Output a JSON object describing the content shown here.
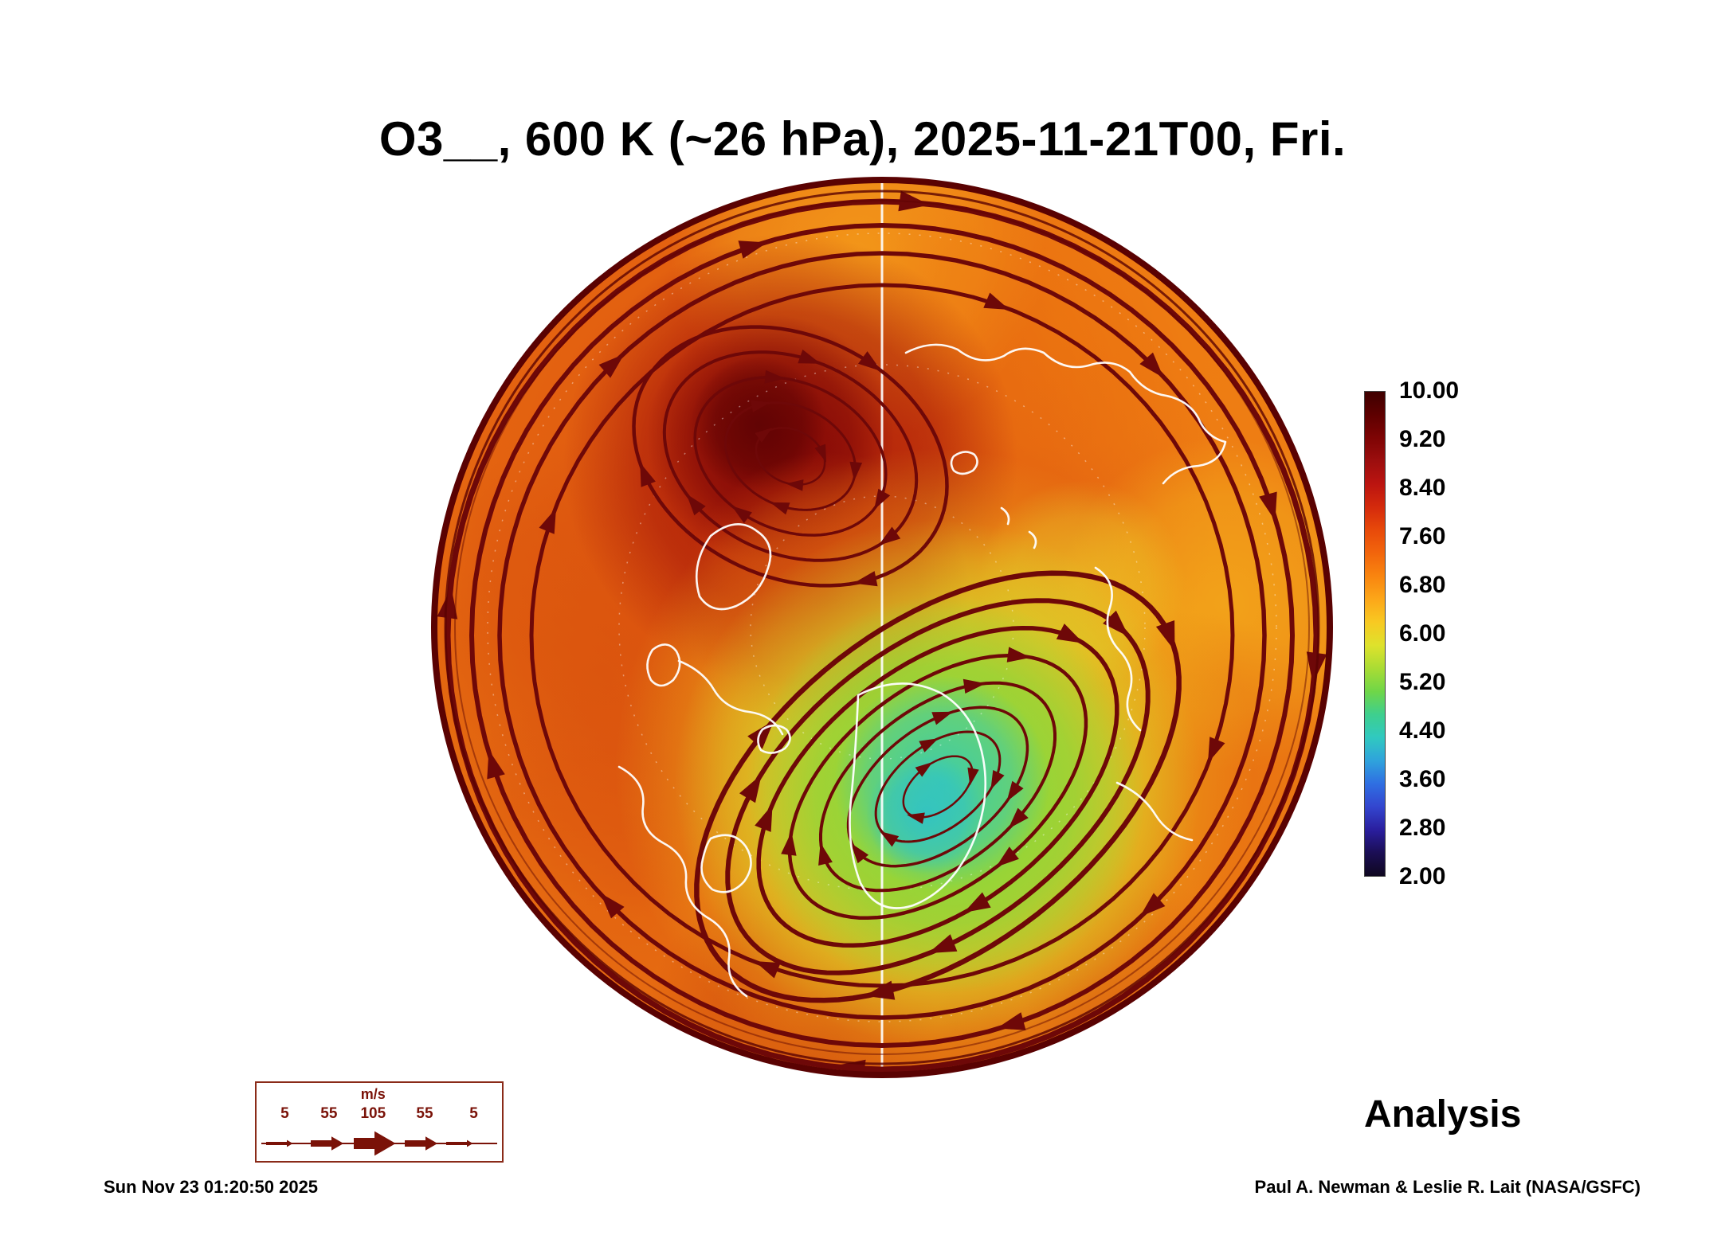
{
  "title": "O3__, 600 K (~26 hPa), 2025-11-21T00, Fri.",
  "analysis_label": "Analysis",
  "timestamp": "Sun Nov 23 01:20:50 2025",
  "credit": "Paul A. Newman & Leslie R. Lait (NASA/GSFC)",
  "colorbar": {
    "ticks": [
      "10.00",
      "9.20",
      "8.40",
      "7.60",
      "6.80",
      "6.00",
      "5.20",
      "4.40",
      "3.60",
      "2.80",
      "2.00"
    ],
    "colors_top_to_bottom": [
      "#3f0000",
      "#5e0000",
      "#7e0404",
      "#9c0e0e",
      "#bb1410",
      "#d42a0c",
      "#e84a0a",
      "#f2650c",
      "#f9850f",
      "#fca719",
      "#f8c922",
      "#dee22c",
      "#aadc34",
      "#6fd648",
      "#3ecf8e",
      "#30c9c0",
      "#2fa3dc",
      "#2f6ee2",
      "#3346cf",
      "#2a1e9e",
      "#1b0e55",
      "#0f0720"
    ]
  },
  "wind_legend": {
    "unit": "m/s",
    "values": [
      "5",
      "55",
      "105",
      "55",
      "5"
    ]
  },
  "colors": {
    "base_field": "#ee7d13",
    "streamline": "#6e0808",
    "coastline": "#ffffff",
    "rim": "#5a0202",
    "legend_accent": "#7a1208"
  },
  "chart_data": {
    "type": "heatmap",
    "title": "O3__, 600 K (~26 hPa), 2025-11-21T00, Fri.",
    "variable": "O3",
    "level": "600 K (~26 hPa)",
    "valid_time": "2025-11-21T00, Fri.",
    "projection": "north polar stereographic (Northern Hemisphere disk)",
    "colorbar_range": [
      2.0,
      10.0
    ],
    "colorbar_ticks": [
      10.0,
      9.2,
      8.4,
      7.6,
      6.8,
      6.0,
      5.2,
      4.4,
      3.6,
      2.8,
      2.0
    ],
    "overlay": "horizontal wind streamlines with arrowheads, arrow size scale 5 / 55 / 105 / 55 / 5 m/s",
    "annotation": "Analysis",
    "regions": [
      {
        "label": "high-ozone anticyclonic lobe",
        "approx_location": "upper-left quadrant (Eurasian/Atlantic side)",
        "approx_value_range": [
          9.0,
          10.0
        ]
      },
      {
        "label": "ambient mid-latitude field",
        "approx_location": "most of disk",
        "approx_value_range": [
          7.2,
          8.6
        ]
      },
      {
        "label": "displaced polar vortex low-ozone region",
        "approx_location": "lower-center-right of disk",
        "approx_value_range": [
          5.2,
          6.8
        ]
      },
      {
        "label": "vortex core minimum (cyan)",
        "approx_location": "center of green region",
        "approx_value_range": [
          4.4,
          5.2
        ]
      },
      {
        "label": "yellow transition ring around vortex",
        "approx_value_range": [
          6.4,
          7.2
        ]
      }
    ],
    "streamline_structure": [
      "closed cyclonic loops around the low-ozone vortex center",
      "closed loops around the high-ozone lobe in the upper-left",
      "concentric circumpolar flow rings near the disk rim"
    ]
  }
}
